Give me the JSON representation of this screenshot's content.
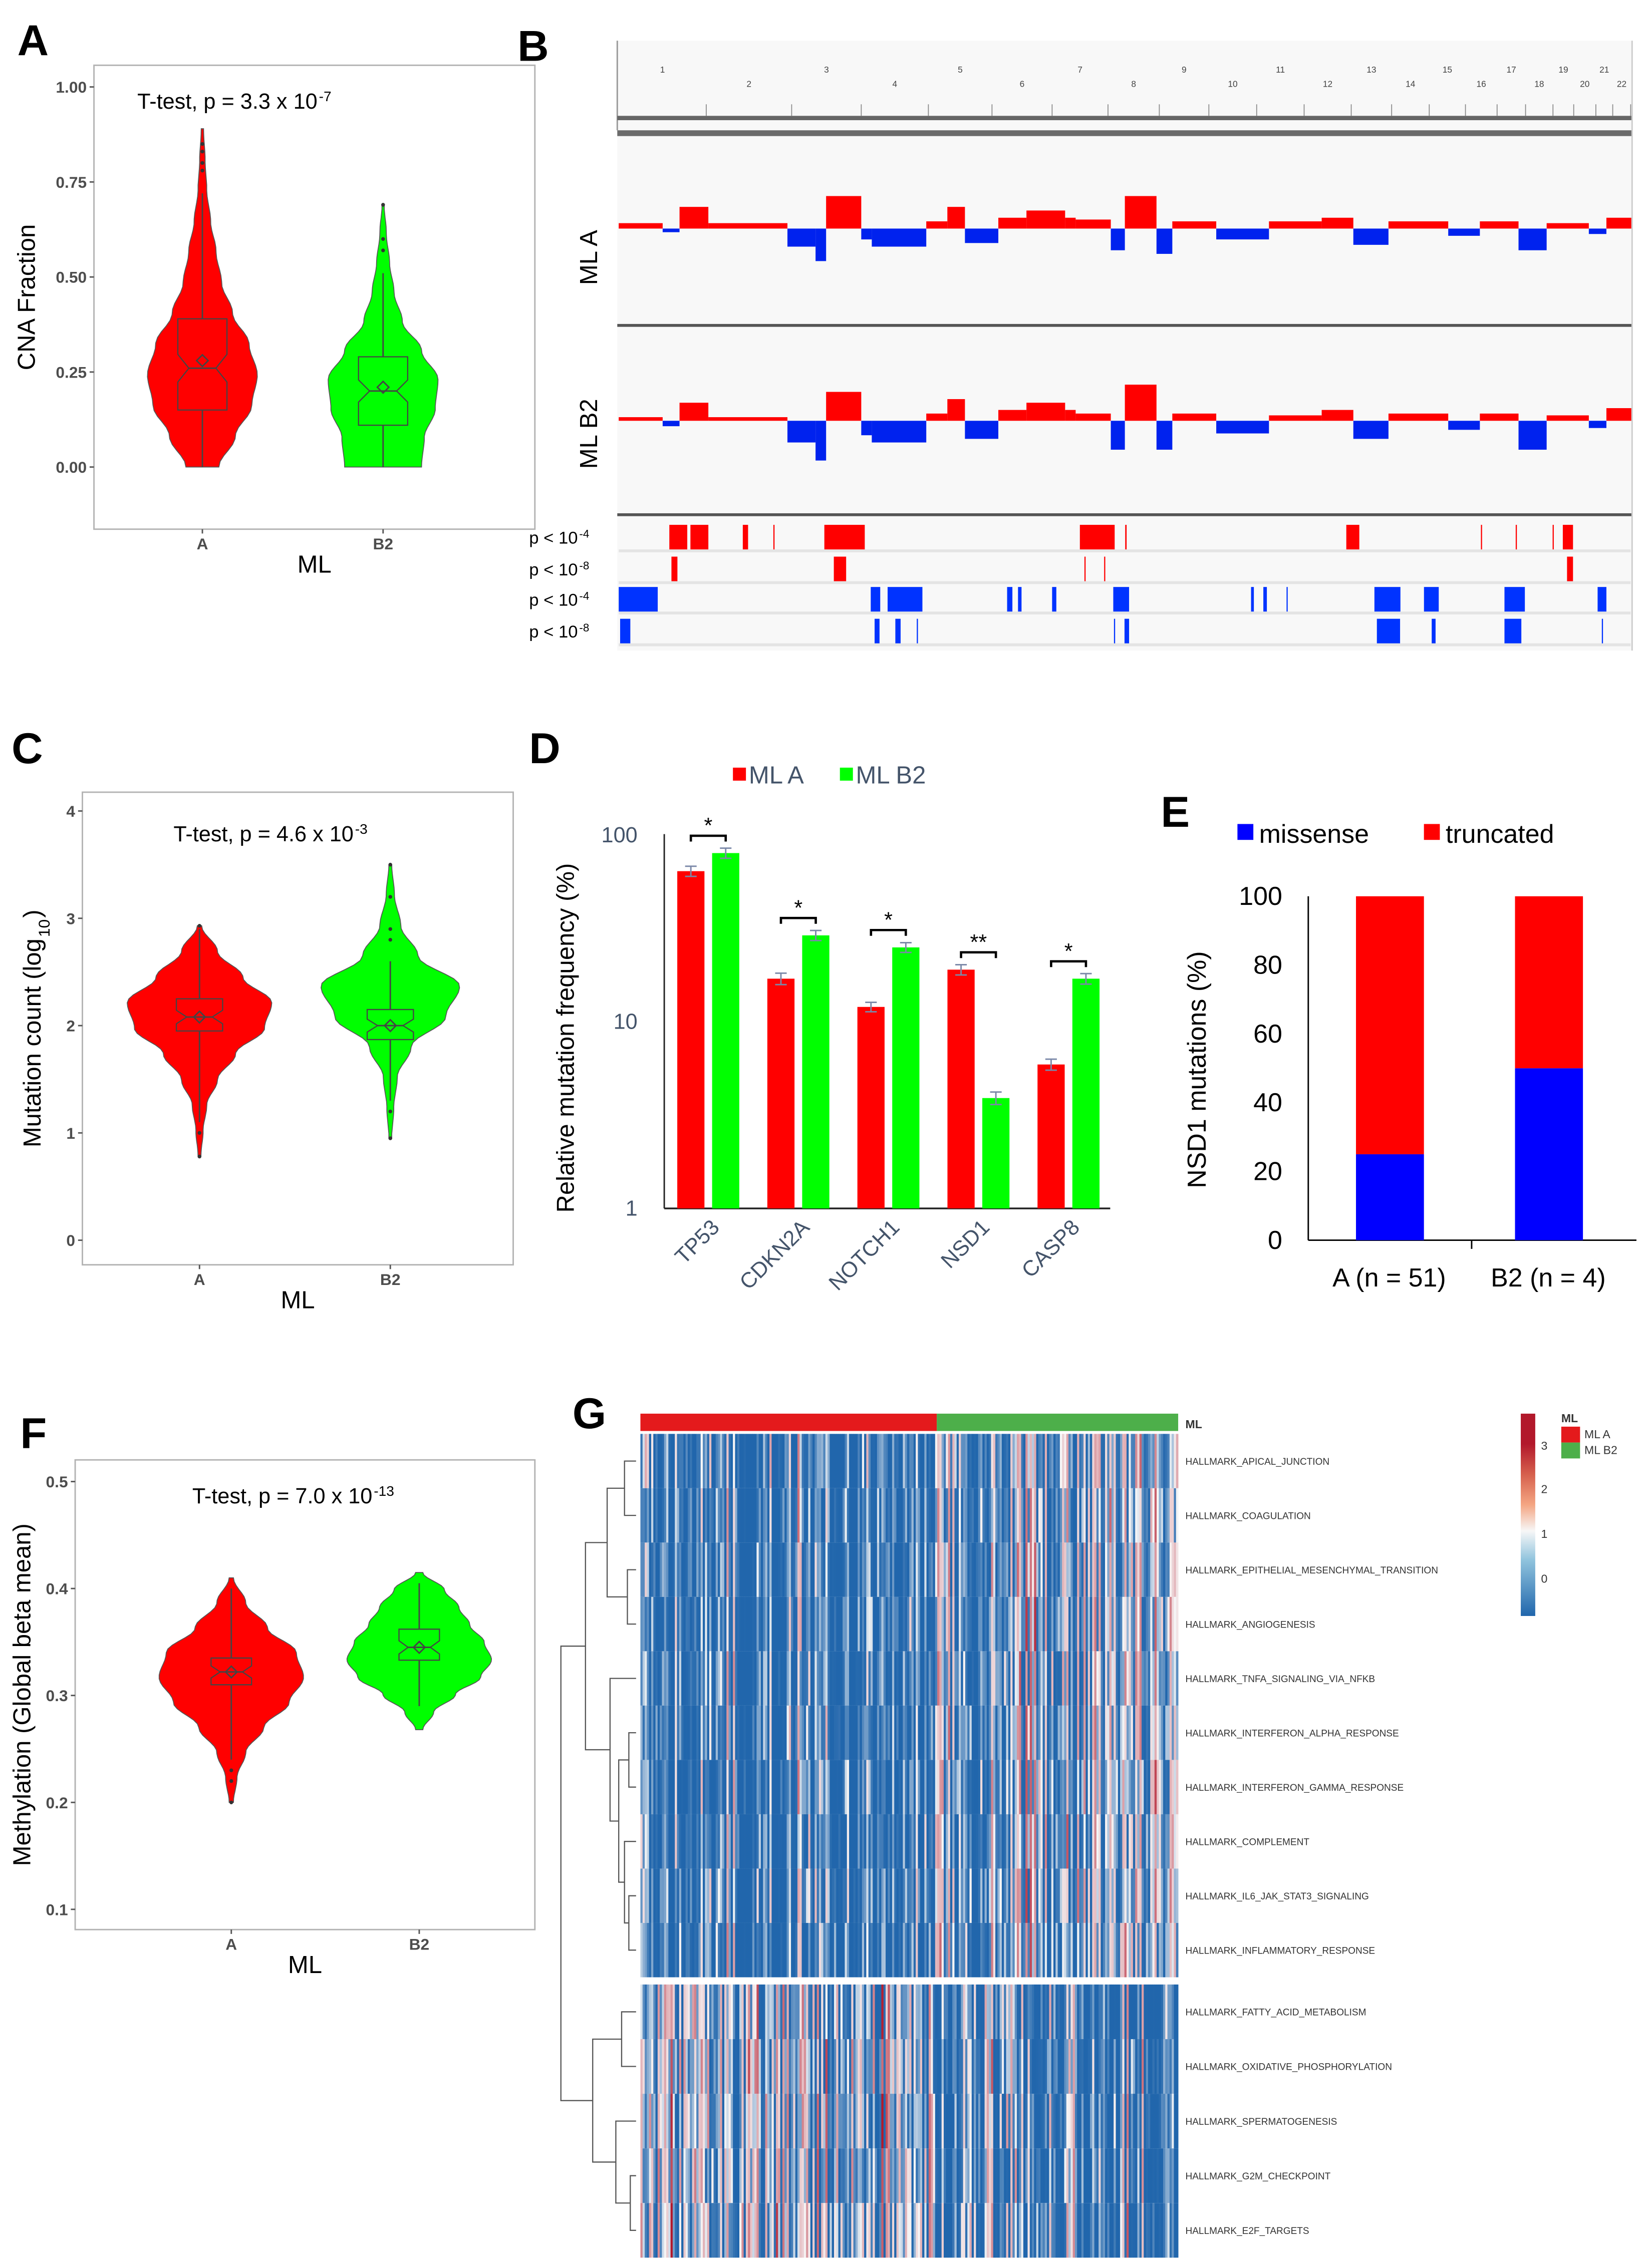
{
  "panels": {
    "A": "A",
    "B": "B",
    "C": "C",
    "D": "D",
    "E": "E",
    "F": "F",
    "G": "G"
  },
  "chart_data": [
    {
      "type": "violin",
      "panel": "A",
      "annotation": "T-test, p = 3.3 x 10",
      "annotation_exp": "-7",
      "xlabel": "ML",
      "ylabel": "CNA Fraction",
      "categories": [
        "A",
        "B2"
      ],
      "yticks": [
        "0.00",
        "0.25",
        "0.50",
        "0.75",
        "1.00"
      ],
      "ylim": [
        -0.12,
        1.05
      ],
      "fill": [
        "#ff0000",
        "#00ff00"
      ],
      "groups": [
        {
          "name": "A",
          "min": 0,
          "q1": 0.15,
          "median": 0.26,
          "q3": 0.39,
          "mean": 0.28,
          "whisker_hi": 0.72,
          "max": 0.89,
          "outliers": [
            0.78,
            0.8,
            0.83,
            0.85
          ],
          "density": [
            0.3,
            0.6,
            0.9,
            1,
            0.85,
            0.55,
            0.35,
            0.25,
            0.15,
            0.08,
            0.05,
            0.02
          ]
        },
        {
          "name": "B2",
          "min": 0,
          "q1": 0.11,
          "median": 0.2,
          "q3": 0.29,
          "mean": 0.21,
          "whisker_hi": 0.51,
          "max": 0.69,
          "outliers": [
            0.57,
            0.6,
            0.69
          ],
          "density": [
            0.7,
            0.75,
            0.95,
            1,
            0.7,
            0.35,
            0.2,
            0.12,
            0.06,
            0.02
          ]
        }
      ]
    },
    {
      "type": "violin",
      "panel": "C",
      "annotation": "T-test, p = 4.6 x 10",
      "annotation_exp": "-3",
      "xlabel": "ML",
      "ylabel": "Mutation count (log",
      "ylabel_sub": "10",
      "ylabel_end": ")",
      "categories": [
        "A",
        "B2"
      ],
      "yticks": [
        "0",
        "1",
        "2",
        "3",
        "4"
      ],
      "ylim": [
        -0.2,
        4.1
      ],
      "fill": [
        "#ff0000",
        "#00ff00"
      ],
      "groups": [
        {
          "name": "A",
          "min": 0.78,
          "q1": 1.95,
          "median": 2.08,
          "q3": 2.25,
          "mean": 2.08,
          "whisker_lo": 1.1,
          "whisker_hi": 2.9,
          "max": 2.93,
          "outliers": [
            0.78,
            1.0,
            2.93
          ],
          "density": [
            0.02,
            0.05,
            0.1,
            0.25,
            0.5,
            0.9,
            1,
            0.6,
            0.25,
            0.03
          ]
        },
        {
          "name": "B2",
          "min": 0.95,
          "q1": 1.87,
          "median": 2.0,
          "q3": 2.15,
          "mean": 2.0,
          "whisker_lo": 1.3,
          "whisker_hi": 2.6,
          "max": 3.5,
          "outliers": [
            0.95,
            1.2,
            2.8,
            2.9,
            3.2,
            3.5
          ],
          "density": [
            0.02,
            0.05,
            0.1,
            0.3,
            0.8,
            1,
            0.4,
            0.15,
            0.06,
            0.02
          ]
        }
      ]
    },
    {
      "type": "violin",
      "panel": "F",
      "annotation": "T-test, p = 7.0 x 10",
      "annotation_exp": "-13",
      "xlabel": "ML",
      "ylabel": "Methylation (Global beta mean)",
      "categories": [
        "A",
        "B2"
      ],
      "yticks": [
        "0.1",
        "0.2",
        "0.3",
        "0.4",
        "0.5"
      ],
      "ylim": [
        0.09,
        0.51
      ],
      "fill": [
        "#ff0000",
        "#00ff00"
      ],
      "groups": [
        {
          "name": "A",
          "min": 0.2,
          "q1": 0.31,
          "median": 0.322,
          "q3": 0.335,
          "mean": 0.322,
          "whisker_lo": 0.24,
          "whisker_hi": 0.4,
          "max": 0.41,
          "outliers": [
            0.2,
            0.22,
            0.23
          ],
          "density": [
            0.03,
            0.08,
            0.2,
            0.45,
            0.8,
            1,
            0.9,
            0.5,
            0.2,
            0.03
          ]
        },
        {
          "name": "B2",
          "min": 0.268,
          "q1": 0.333,
          "median": 0.345,
          "q3": 0.362,
          "mean": 0.345,
          "whisker_lo": 0.29,
          "whisker_hi": 0.405,
          "max": 0.415,
          "outliers": [],
          "density": [
            0.05,
            0.2,
            0.5,
            0.85,
            1,
            0.9,
            0.7,
            0.55,
            0.35,
            0.05
          ]
        }
      ]
    },
    {
      "type": "bar",
      "panel": "D",
      "yscale": "log",
      "ylabel": "Relative mutation frequency (%)",
      "categories": [
        "TP53",
        "CDKN2A",
        "NOTCH1",
        "NSD1",
        "CASP8"
      ],
      "yticks": [
        "1",
        "10",
        "100"
      ],
      "ylim": [
        1,
        100
      ],
      "series": [
        {
          "name": "ML A",
          "color": "#ff0000",
          "values": [
            64,
            17,
            12,
            19,
            5.9
          ],
          "errors": [
            4,
            1.2,
            0.7,
            1.2,
            0.4
          ]
        },
        {
          "name": "ML B2",
          "color": "#00ff00",
          "values": [
            80,
            29,
            25,
            3.9,
            17
          ],
          "errors": [
            5,
            1.8,
            1.5,
            0.3,
            1.1
          ]
        }
      ],
      "significance": [
        "*",
        "*",
        "*",
        "**",
        "*"
      ]
    },
    {
      "type": "bar",
      "panel": "E",
      "stacked": true,
      "ylabel": "NSD1 mutations (%)",
      "categories": [
        "A (n = 51)",
        "B2 (n = 4)"
      ],
      "yticks": [
        "0",
        "20",
        "40",
        "60",
        "80",
        "100"
      ],
      "ylim": [
        0,
        100
      ],
      "series": [
        {
          "name": "missense",
          "color": "#0000ff",
          "values": [
            25,
            50
          ]
        },
        {
          "name": "truncated",
          "color": "#ff0000",
          "values": [
            75,
            50
          ]
        }
      ]
    },
    {
      "type": "genome_track",
      "panel": "B",
      "chromosomes": [
        "1",
        "2",
        "3",
        "4",
        "5",
        "6",
        "7",
        "8",
        "9",
        "10",
        "11",
        "12",
        "13",
        "14",
        "15",
        "16",
        "17",
        "18",
        "19",
        "20",
        "21",
        "22"
      ],
      "chrom_sizes_mb": [
        249,
        243,
        198,
        191,
        181,
        171,
        159,
        146,
        141,
        136,
        135,
        134,
        115,
        107,
        103,
        90,
        81,
        78,
        59,
        63,
        48,
        51
      ],
      "tracks": [
        {
          "name": "ML A",
          "segments": [
            [
              0,
              125,
              0.15
            ],
            [
              125,
              173,
              -0.1
            ],
            [
              173,
              255,
              0.6
            ],
            [
              255,
              480,
              0.15
            ],
            [
              480,
              560,
              -0.5
            ],
            [
              560,
              590,
              -0.9
            ],
            [
              590,
              690,
              0.9
            ],
            [
              690,
              720,
              -0.3
            ],
            [
              720,
              875,
              -0.5
            ],
            [
              875,
              935,
              0.2
            ],
            [
              935,
              985,
              0.6
            ],
            [
              985,
              1080,
              -0.4
            ],
            [
              1080,
              1160,
              0.3
            ],
            [
              1160,
              1270,
              0.5
            ],
            [
              1270,
              1300,
              0.3
            ],
            [
              1300,
              1400,
              0.25
            ],
            [
              1400,
              1440,
              -0.6
            ],
            [
              1440,
              1530,
              0.9
            ],
            [
              1530,
              1575,
              -0.7
            ],
            [
              1575,
              1700,
              0.2
            ],
            [
              1700,
              1850,
              -0.3
            ],
            [
              1850,
              2000,
              0.2
            ],
            [
              2000,
              2090,
              0.3
            ],
            [
              2090,
              2190,
              -0.45
            ],
            [
              2190,
              2360,
              0.2
            ],
            [
              2360,
              2450,
              -0.2
            ],
            [
              2450,
              2560,
              0.2
            ],
            [
              2560,
              2640,
              -0.6
            ],
            [
              2640,
              2760,
              0.15
            ],
            [
              2760,
              2810,
              -0.15
            ],
            [
              2810,
              2881,
              0.3
            ]
          ]
        },
        {
          "name": "ML B2",
          "segments": [
            [
              0,
              125,
              0.1
            ],
            [
              125,
              173,
              -0.15
            ],
            [
              173,
              255,
              0.5
            ],
            [
              255,
              480,
              0.1
            ],
            [
              480,
              560,
              -0.6
            ],
            [
              560,
              590,
              -1.1
            ],
            [
              590,
              690,
              0.8
            ],
            [
              690,
              720,
              -0.4
            ],
            [
              720,
              875,
              -0.6
            ],
            [
              875,
              935,
              0.2
            ],
            [
              935,
              985,
              0.6
            ],
            [
              985,
              1080,
              -0.5
            ],
            [
              1080,
              1160,
              0.3
            ],
            [
              1160,
              1270,
              0.5
            ],
            [
              1270,
              1300,
              0.3
            ],
            [
              1300,
              1400,
              0.2
            ],
            [
              1400,
              1440,
              -0.8
            ],
            [
              1440,
              1530,
              1.0
            ],
            [
              1530,
              1575,
              -0.8
            ],
            [
              1575,
              1700,
              0.2
            ],
            [
              1700,
              1850,
              -0.35
            ],
            [
              1850,
              2000,
              0.15
            ],
            [
              2000,
              2090,
              0.3
            ],
            [
              2090,
              2190,
              -0.5
            ],
            [
              2190,
              2360,
              0.2
            ],
            [
              2360,
              2450,
              -0.25
            ],
            [
              2450,
              2560,
              0.2
            ],
            [
              2560,
              2640,
              -0.8
            ],
            [
              2640,
              2760,
              0.15
            ],
            [
              2760,
              2810,
              -0.2
            ],
            [
              2810,
              2881,
              0.35
            ]
          ]
        }
      ],
      "significance_rows": [
        {
          "label": "p < 10",
          "exp": "-4",
          "color": "#ff0000",
          "regions_mb": [
            [
              144,
              195
            ],
            [
              204,
              255
            ],
            [
              353,
              368
            ],
            [
              440,
              442
            ],
            [
              585,
              700
            ],
            [
              1312,
              1411
            ],
            [
              1441,
              1445
            ],
            [
              2070,
              2107
            ],
            [
              2453,
              2456
            ],
            [
              2552,
              2555
            ],
            [
              2657,
              2660
            ],
            [
              2686,
              2715
            ]
          ]
        },
        {
          "label": "p < 10",
          "exp": "-8",
          "color": "#ff0000",
          "regions_mb": [
            [
              150,
              167
            ],
            [
              612,
              647
            ],
            [
              1325,
              1327
            ],
            [
              1381,
              1383
            ],
            [
              2698,
              2715
            ]
          ]
        },
        {
          "label": "p < 10",
          "exp": "-4",
          "color": "#0033ff",
          "regions_mb": [
            [
              0,
              111
            ],
            [
              717,
              744
            ],
            [
              765,
              864
            ],
            [
              1105,
              1120
            ],
            [
              1136,
              1146
            ],
            [
              1233,
              1245
            ],
            [
              1407,
              1452
            ],
            [
              1799,
              1807
            ],
            [
              1834,
              1844
            ],
            [
              1900,
              1903
            ],
            [
              2150,
              2224
            ],
            [
              2291,
              2333
            ],
            [
              2520,
              2578
            ],
            [
              2785,
              2810
            ]
          ]
        },
        {
          "label": "p < 10",
          "exp": "-8",
          "color": "#0033ff",
          "regions_mb": [
            [
              4,
              33
            ],
            [
              728,
              742
            ],
            [
              787,
              802
            ],
            [
              848,
              851
            ],
            [
              1409,
              1411
            ],
            [
              1439,
              1452
            ],
            [
              2157,
              2223
            ],
            [
              2313,
              2324
            ],
            [
              2520,
              2568
            ],
            [
              2797,
              2800
            ]
          ]
        }
      ]
    },
    {
      "type": "heatmap",
      "panel": "G",
      "annotation_title": "ML",
      "groups": [
        {
          "name": "ML A",
          "color": "#e41a1c"
        },
        {
          "name": "ML B2",
          "color": "#4daf4a"
        }
      ],
      "rows": [
        "HALLMARK_APICAL_JUNCTION",
        "HALLMARK_COAGULATION",
        "HALLMARK_EPITHELIAL_MESENCHYMAL_TRANSITION",
        "HALLMARK_ANGIOGENESIS",
        "HALLMARK_TNFA_SIGNALING_VIA_NFKB",
        "HALLMARK_INTERFERON_ALPHA_RESPONSE",
        "HALLMARK_INTERFERON_GAMMA_RESPONSE",
        "HALLMARK_COMPLEMENT",
        "HALLMARK_IL6_JAK_STAT3_SIGNALING",
        "HALLMARK_INFLAMMATORY_RESPONSE",
        "HALLMARK_FATTY_ACID_METABOLISM",
        "HALLMARK_OXIDATIVE_PHOSPHORYLATION",
        "HALLMARK_SPERMATOGENESIS",
        "HALLMARK_G2M_CHECKPOINT",
        "HALLMARK_E2F_TARGETS"
      ],
      "row_clusters": [
        10,
        5
      ],
      "colorbar_ticks": [
        "0",
        "1",
        "2",
        "3"
      ],
      "colorbar_range": [
        -0.8,
        3.5
      ],
      "colors": {
        "low": "#2166ac",
        "mid": "#f7f7f7",
        "high": "#b2182b"
      }
    }
  ]
}
